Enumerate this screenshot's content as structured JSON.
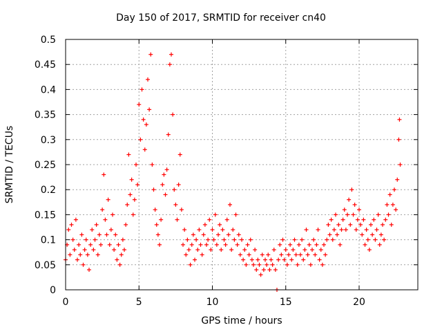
{
  "chart_data": {
    "type": "scatter",
    "title": "Day 150 of 2017, SRMTID for receiver cn40",
    "xlabel": "GPS time / hours",
    "ylabel": "SRMTID / TECUs",
    "xlim": [
      0,
      24
    ],
    "ylim": [
      0,
      0.5
    ],
    "x_ticks": [
      0,
      5,
      10,
      15,
      20
    ],
    "y_ticks": [
      0,
      0.05,
      0.1,
      0.15,
      0.2,
      0.25,
      0.3,
      0.35,
      0.4,
      0.45,
      0.5
    ],
    "grid": true,
    "marker": "plus",
    "marker_color": "#ff0000",
    "series": [
      {
        "name": "SRMTID",
        "points": [
          [
            0.0,
            0.06
          ],
          [
            0.1,
            0.09
          ],
          [
            0.2,
            0.12
          ],
          [
            0.3,
            0.07
          ],
          [
            0.4,
            0.13
          ],
          [
            0.5,
            0.1
          ],
          [
            0.6,
            0.08
          ],
          [
            0.7,
            0.14
          ],
          [
            0.8,
            0.06
          ],
          [
            0.9,
            0.09
          ],
          [
            1.0,
            0.07
          ],
          [
            1.1,
            0.11
          ],
          [
            1.2,
            0.05
          ],
          [
            1.3,
            0.08
          ],
          [
            1.4,
            0.1
          ],
          [
            1.5,
            0.07
          ],
          [
            1.6,
            0.04
          ],
          [
            1.7,
            0.09
          ],
          [
            1.8,
            0.12
          ],
          [
            1.9,
            0.08
          ],
          [
            2.0,
            0.1
          ],
          [
            2.1,
            0.13
          ],
          [
            2.2,
            0.07
          ],
          [
            2.3,
            0.11
          ],
          [
            2.4,
            0.09
          ],
          [
            2.5,
            0.16
          ],
          [
            2.6,
            0.23
          ],
          [
            2.7,
            0.14
          ],
          [
            2.8,
            0.11
          ],
          [
            2.9,
            0.18
          ],
          [
            3.0,
            0.09
          ],
          [
            3.1,
            0.12
          ],
          [
            3.2,
            0.15
          ],
          [
            3.3,
            0.08
          ],
          [
            3.4,
            0.11
          ],
          [
            3.5,
            0.06
          ],
          [
            3.6,
            0.09
          ],
          [
            3.7,
            0.05
          ],
          [
            3.8,
            0.07
          ],
          [
            3.9,
            0.1
          ],
          [
            4.0,
            0.08
          ],
          [
            4.1,
            0.13
          ],
          [
            4.2,
            0.17
          ],
          [
            4.3,
            0.27
          ],
          [
            4.4,
            0.19
          ],
          [
            4.5,
            0.22
          ],
          [
            4.6,
            0.15
          ],
          [
            4.7,
            0.18
          ],
          [
            4.8,
            0.25
          ],
          [
            4.9,
            0.21
          ],
          [
            5.0,
            0.37
          ],
          [
            5.1,
            0.3
          ],
          [
            5.2,
            0.4
          ],
          [
            5.3,
            0.34
          ],
          [
            5.4,
            0.28
          ],
          [
            5.5,
            0.33
          ],
          [
            5.6,
            0.42
          ],
          [
            5.7,
            0.36
          ],
          [
            5.8,
            0.47
          ],
          [
            5.9,
            0.25
          ],
          [
            6.0,
            0.2
          ],
          [
            6.1,
            0.16
          ],
          [
            6.2,
            0.13
          ],
          [
            6.3,
            0.11
          ],
          [
            6.4,
            0.09
          ],
          [
            6.5,
            0.14
          ],
          [
            6.6,
            0.21
          ],
          [
            6.7,
            0.23
          ],
          [
            6.8,
            0.19
          ],
          [
            6.9,
            0.24
          ],
          [
            7.0,
            0.31
          ],
          [
            7.1,
            0.45
          ],
          [
            7.2,
            0.47
          ],
          [
            7.3,
            0.35
          ],
          [
            7.4,
            0.2
          ],
          [
            7.5,
            0.17
          ],
          [
            7.6,
            0.14
          ],
          [
            7.7,
            0.21
          ],
          [
            7.8,
            0.27
          ],
          [
            7.9,
            0.16
          ],
          [
            8.0,
            0.09
          ],
          [
            8.1,
            0.12
          ],
          [
            8.2,
            0.07
          ],
          [
            8.3,
            0.1
          ],
          [
            8.4,
            0.08
          ],
          [
            8.5,
            0.05
          ],
          [
            8.6,
            0.09
          ],
          [
            8.7,
            0.11
          ],
          [
            8.8,
            0.06
          ],
          [
            8.9,
            0.1
          ],
          [
            9.0,
            0.08
          ],
          [
            9.1,
            0.12
          ],
          [
            9.2,
            0.09
          ],
          [
            9.3,
            0.07
          ],
          [
            9.4,
            0.11
          ],
          [
            9.5,
            0.13
          ],
          [
            9.6,
            0.09
          ],
          [
            9.7,
            0.1
          ],
          [
            9.8,
            0.14
          ],
          [
            9.9,
            0.08
          ],
          [
            10.0,
            0.12
          ],
          [
            10.1,
            0.1
          ],
          [
            10.2,
            0.15
          ],
          [
            10.3,
            0.09
          ],
          [
            10.4,
            0.11
          ],
          [
            10.5,
            0.13
          ],
          [
            10.6,
            0.08
          ],
          [
            10.7,
            0.12
          ],
          [
            10.8,
            0.1
          ],
          [
            10.9,
            0.09
          ],
          [
            11.0,
            0.14
          ],
          [
            11.1,
            0.11
          ],
          [
            11.2,
            0.17
          ],
          [
            11.3,
            0.08
          ],
          [
            11.4,
            0.12
          ],
          [
            11.5,
            0.1
          ],
          [
            11.6,
            0.15
          ],
          [
            11.7,
            0.09
          ],
          [
            11.8,
            0.11
          ],
          [
            11.9,
            0.07
          ],
          [
            12.0,
            0.1
          ],
          [
            12.1,
            0.06
          ],
          [
            12.2,
            0.08
          ],
          [
            12.3,
            0.05
          ],
          [
            12.4,
            0.09
          ],
          [
            12.5,
            0.07
          ],
          [
            12.6,
            0.1
          ],
          [
            12.7,
            0.06
          ],
          [
            12.8,
            0.05
          ],
          [
            12.9,
            0.08
          ],
          [
            13.0,
            0.04
          ],
          [
            13.1,
            0.06
          ],
          [
            13.2,
            0.05
          ],
          [
            13.3,
            0.03
          ],
          [
            13.4,
            0.07
          ],
          [
            13.5,
            0.04
          ],
          [
            13.6,
            0.06
          ],
          [
            13.7,
            0.05
          ],
          [
            13.8,
            0.07
          ],
          [
            13.9,
            0.04
          ],
          [
            14.0,
            0.06
          ],
          [
            14.1,
            0.05
          ],
          [
            14.2,
            0.08
          ],
          [
            14.3,
            0.04
          ],
          [
            14.4,
            0.0
          ],
          [
            14.5,
            0.06
          ],
          [
            14.6,
            0.09
          ],
          [
            14.7,
            0.07
          ],
          [
            14.8,
            0.1
          ],
          [
            14.9,
            0.06
          ],
          [
            15.0,
            0.08
          ],
          [
            15.1,
            0.05
          ],
          [
            15.2,
            0.07
          ],
          [
            15.3,
            0.09
          ],
          [
            15.4,
            0.06
          ],
          [
            15.5,
            0.08
          ],
          [
            15.6,
            0.1
          ],
          [
            15.7,
            0.07
          ],
          [
            15.8,
            0.05
          ],
          [
            15.9,
            0.09
          ],
          [
            16.0,
            0.07
          ],
          [
            16.1,
            0.1
          ],
          [
            16.2,
            0.06
          ],
          [
            16.3,
            0.08
          ],
          [
            16.4,
            0.12
          ],
          [
            16.5,
            0.07
          ],
          [
            16.6,
            0.09
          ],
          [
            16.7,
            0.05
          ],
          [
            16.8,
            0.08
          ],
          [
            16.9,
            0.1
          ],
          [
            17.0,
            0.07
          ],
          [
            17.1,
            0.09
          ],
          [
            17.2,
            0.12
          ],
          [
            17.3,
            0.06
          ],
          [
            17.4,
            0.08
          ],
          [
            17.5,
            0.05
          ],
          [
            17.6,
            0.09
          ],
          [
            17.7,
            0.07
          ],
          [
            17.8,
            0.1
          ],
          [
            17.9,
            0.13
          ],
          [
            18.0,
            0.11
          ],
          [
            18.1,
            0.14
          ],
          [
            18.2,
            0.1
          ],
          [
            18.3,
            0.12
          ],
          [
            18.4,
            0.15
          ],
          [
            18.5,
            0.11
          ],
          [
            18.6,
            0.13
          ],
          [
            18.7,
            0.09
          ],
          [
            18.8,
            0.12
          ],
          [
            18.9,
            0.14
          ],
          [
            19.0,
            0.16
          ],
          [
            19.1,
            0.12
          ],
          [
            19.2,
            0.15
          ],
          [
            19.3,
            0.18
          ],
          [
            19.4,
            0.13
          ],
          [
            19.5,
            0.2
          ],
          [
            19.6,
            0.15
          ],
          [
            19.7,
            0.17
          ],
          [
            19.8,
            0.12
          ],
          [
            19.9,
            0.14
          ],
          [
            20.0,
            0.16
          ],
          [
            20.1,
            0.13
          ],
          [
            20.2,
            0.11
          ],
          [
            20.3,
            0.14
          ],
          [
            20.4,
            0.09
          ],
          [
            20.5,
            0.12
          ],
          [
            20.6,
            0.1
          ],
          [
            20.7,
            0.08
          ],
          [
            20.8,
            0.13
          ],
          [
            20.9,
            0.11
          ],
          [
            21.0,
            0.14
          ],
          [
            21.1,
            0.1
          ],
          [
            21.2,
            0.12
          ],
          [
            21.3,
            0.15
          ],
          [
            21.4,
            0.09
          ],
          [
            21.5,
            0.11
          ],
          [
            21.6,
            0.13
          ],
          [
            21.7,
            0.1
          ],
          [
            21.8,
            0.14
          ],
          [
            21.9,
            0.17
          ],
          [
            22.0,
            0.15
          ],
          [
            22.1,
            0.19
          ],
          [
            22.2,
            0.13
          ],
          [
            22.3,
            0.17
          ],
          [
            22.4,
            0.2
          ],
          [
            22.5,
            0.16
          ],
          [
            22.6,
            0.22
          ],
          [
            22.7,
            0.3
          ],
          [
            22.75,
            0.34
          ],
          [
            22.8,
            0.25
          ]
        ]
      }
    ]
  }
}
